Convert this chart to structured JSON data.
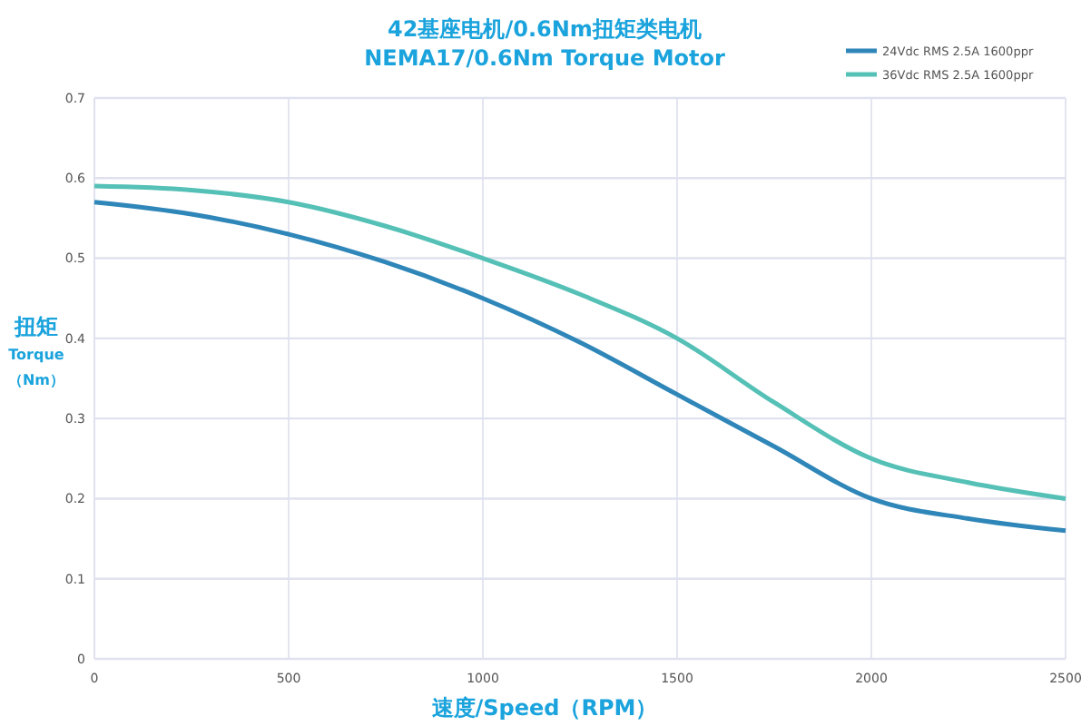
{
  "chart_data": {
    "type": "line",
    "title": "42基座电机/0.6Nm扭矩类电机\nNEMA17/0.6Nm Torque Motor",
    "xlabel": "速度/Speed（RPM）",
    "ylabel": "扭矩\nTorque\n（Nm）",
    "x": [
      0,
      250,
      500,
      750,
      1000,
      1250,
      1500,
      1750,
      2000,
      2250,
      2500
    ],
    "series": [
      {
        "name": "24Vdc RMS 2.5A 1600ppr",
        "color": "#2f86b8",
        "values": [
          0.57,
          0.555,
          0.53,
          0.495,
          0.45,
          0.395,
          0.33,
          0.265,
          0.2,
          0.175,
          0.16
        ]
      },
      {
        "name": "36Vdc RMS 2.5A 1600ppr",
        "color": "#55c0b6",
        "values": [
          0.59,
          0.585,
          0.57,
          0.54,
          0.5,
          0.455,
          0.4,
          0.32,
          0.25,
          0.22,
          0.2
        ]
      }
    ],
    "xlim": [
      0,
      2500
    ],
    "xticks": [
      0,
      500,
      1000,
      1500,
      2000,
      2500
    ],
    "ylim": [
      0,
      0.7
    ],
    "yticks": [
      0,
      0.1,
      0.2,
      0.3,
      0.4,
      0.5,
      0.6,
      0.7
    ],
    "grid": true,
    "legend": "top right",
    "marker": "none",
    "line_style": "solid"
  }
}
